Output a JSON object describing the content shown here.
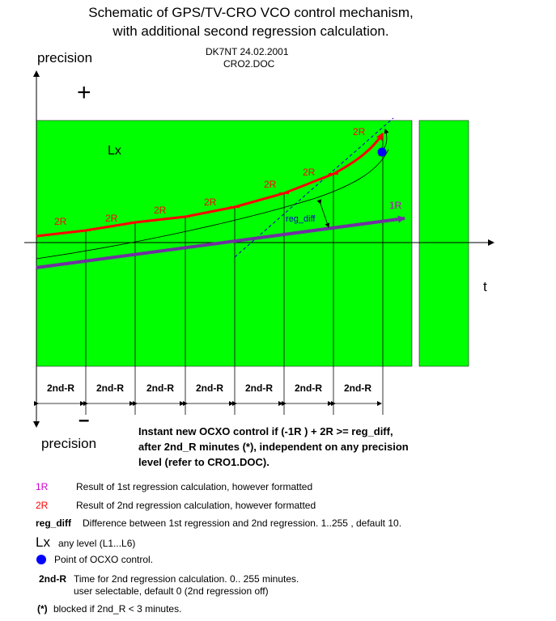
{
  "header": {
    "title_line1": "Schematic of GPS/TV-CRO VCO control mechanism,",
    "title_line2": "with additional second regression calculation.",
    "author_date": "DK7NT 24.02.2001",
    "doc_name": "CRO2.DOC"
  },
  "axes": {
    "y_top_label": "precision",
    "y_bottom_label": "precision",
    "plus_sign": "+",
    "minus_sign": "–",
    "x_label": "t"
  },
  "diagram": {
    "level_label": "Lx",
    "r2_labels": [
      "2R",
      "2R",
      "2R",
      "2R",
      "2R",
      "2R",
      "2R"
    ],
    "r1_label": "1R",
    "reg_diff_label": "reg_diff",
    "interval_labels": [
      "2nd-R",
      "2nd-R",
      "2nd-R",
      "2nd-R",
      "2nd-R",
      "2nd-R",
      "2nd-R"
    ],
    "colors": {
      "field_green": "#00ff00",
      "red_curve": "#ff0000",
      "purple_line": "#7030a0",
      "blue_point": "#0000ff",
      "label_red": "#ff0000",
      "label_blue": "#0000ff",
      "label_magenta": "#cc00cc"
    }
  },
  "note": {
    "line1": "Instant new OCXO control if  (-1R ) + 2R  >=  reg_diff,",
    "line2": "after 2nd_R minutes (*), independent on any precision",
    "line3": "level (refer to CRO1.DOC)."
  },
  "legend": {
    "r1_key": "1R",
    "r1_desc": "Result of 1st regression calculation, however formatted",
    "r2_key": "2R",
    "r2_desc": "Result of 2nd regression calculation, however formatted",
    "regdiff_key": "reg_diff",
    "regdiff_desc": "Difference between 1st regression and 2nd regression. 1..255 , default 10.",
    "lx_key": "Lx",
    "lx_desc": "any level (L1...L6)",
    "point_desc": "Point of OCXO control.",
    "r2time_key": "2nd-R",
    "r2time_desc1": "Time for 2nd regression calculation. 0.. 255 minutes.",
    "r2time_desc2": "user selectable, default  0 (2nd regression off)",
    "blocked_key": "(*)",
    "blocked_desc": " blocked if  2nd_R  < 3 minutes."
  }
}
